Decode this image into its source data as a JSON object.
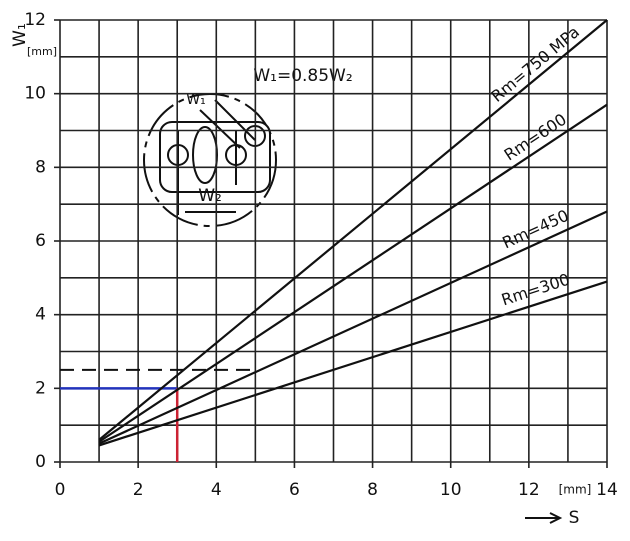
{
  "chart_data": {
    "type": "line",
    "x_label": "S",
    "y_label": "W₁",
    "x_unit": "[mm]",
    "y_unit": "[mm]",
    "x": [
      1,
      14
    ],
    "series": [
      {
        "name": "Rm=750 MPa",
        "color": "#111111",
        "values": [
          0.6,
          12
        ]
      },
      {
        "name": "Rm=600",
        "color": "#111111",
        "values": [
          0.55,
          9.7
        ]
      },
      {
        "name": "Rm=450",
        "color": "#111111",
        "values": [
          0.5,
          6.8
        ]
      },
      {
        "name": "Rm=300",
        "color": "#111111",
        "values": [
          0.45,
          4.9
        ]
      }
    ],
    "xlim": [
      0,
      14
    ],
    "ylim": [
      0,
      12
    ],
    "xticks": [
      0,
      2,
      4,
      6,
      8,
      10,
      12,
      14
    ],
    "yticks": [
      0,
      2,
      4,
      6,
      8,
      10,
      12
    ],
    "grid": true,
    "minor_grid": 1,
    "guide": {
      "x": 3,
      "y": 2,
      "h_color": "#2233bb",
      "v_color": "#cc2233"
    },
    "dashed_guide": {
      "y": 2.5,
      "x": 5
    },
    "annotations": {
      "formula": "W₁=0.85W₂",
      "w1": "W₁",
      "w2": "W₂"
    }
  }
}
